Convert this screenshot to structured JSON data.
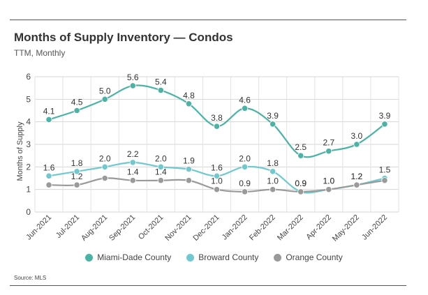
{
  "title": "Months of Supply Inventory — Condos",
  "subtitle": "TTM, Monthly",
  "source": "Source: MLS",
  "chart_data": {
    "type": "line",
    "title": "Months of Supply Inventory — Condos",
    "subtitle": "TTM, Monthly",
    "xlabel": "",
    "ylabel": "Months of Supply",
    "ylim": [
      0,
      6
    ],
    "yticks": [
      0,
      1,
      2,
      3,
      4,
      5,
      6
    ],
    "grid": true,
    "legend_position": "bottom",
    "categories": [
      "Jun-2021",
      "Jul-2021",
      "Aug-2021",
      "Sep-2021",
      "Oct-2021",
      "Nov-2021",
      "Dec-2021",
      "Jan-2022",
      "Feb-2022",
      "Mar-2022",
      "Apr-2022",
      "May-2022",
      "Jun-2022"
    ],
    "series": [
      {
        "name": "Miami-Dade County",
        "color": "#4bb3a5",
        "labeled": true,
        "values": [
          4.1,
          4.5,
          5.0,
          5.6,
          5.4,
          4.8,
          3.8,
          4.6,
          3.9,
          2.5,
          2.7,
          3.0,
          3.9
        ]
      },
      {
        "name": "Broward County",
        "color": "#6fc9cf",
        "labeled": true,
        "values": [
          1.6,
          1.8,
          2.0,
          2.2,
          2.0,
          1.9,
          1.6,
          2.0,
          1.8,
          0.9,
          1.0,
          1.2,
          1.5
        ]
      },
      {
        "name": "Orange County",
        "color": "#9a9a9a",
        "labeled": false,
        "values": [
          1.2,
          1.2,
          1.5,
          1.4,
          1.4,
          1.4,
          1.0,
          0.9,
          1.0,
          0.9,
          1.0,
          1.2,
          1.4
        ]
      }
    ],
    "annotations": [
      {
        "series": "Broward County",
        "category": "Jun-2021",
        "text": "1.6"
      },
      {
        "series": "Broward County",
        "category": "Jul-2021",
        "text": "1.8"
      },
      {
        "series": "Orange County",
        "category": "Jul-2021",
        "text": "1.2"
      },
      {
        "series": "Orange County",
        "category": "Sep-2021",
        "text": "1.4"
      },
      {
        "series": "Orange County",
        "category": "Oct-2021",
        "text": "1.4"
      },
      {
        "series": "Orange County",
        "category": "Dec-2021",
        "text": "1.0"
      },
      {
        "series": "Orange County",
        "category": "Jan-2022",
        "text": "0.9"
      },
      {
        "series": "Orange County",
        "category": "Feb-2022",
        "text": "1.0"
      },
      {
        "series": "Orange County",
        "category": "Mar-2022",
        "text": "0.9"
      },
      {
        "series": "Orange County",
        "category": "Apr-2022",
        "text": "1.0"
      },
      {
        "series": "Orange County",
        "category": "May-2022",
        "text": "1.2"
      }
    ]
  }
}
